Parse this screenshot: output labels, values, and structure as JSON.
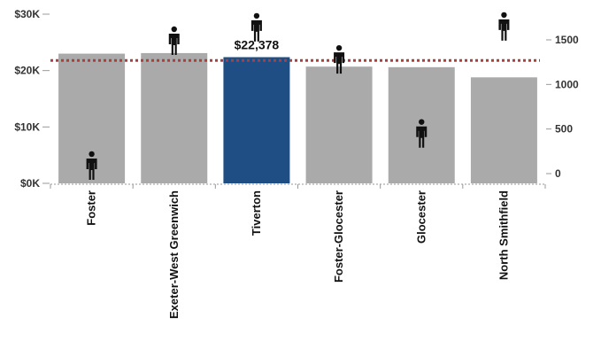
{
  "chart_data": {
    "type": "bar",
    "categories": [
      "Foster",
      "Exeter-West Greenwich",
      "Tiverton",
      "Foster-Glocester",
      "Glocester",
      "North Smithfield"
    ],
    "values": [
      23000,
      23100,
      22378,
      20700,
      20600,
      18800
    ],
    "highlight_index": 2,
    "highlight_label": "$22,378",
    "reference_line": 21800,
    "secondary_series": {
      "marker": "person-icon",
      "values": [
        90,
        1490,
        1640,
        1280,
        450,
        1650
      ]
    },
    "y_left": {
      "ticks": [
        0,
        10000,
        20000,
        30000
      ],
      "tick_labels": [
        "$0K",
        "$10K",
        "$20K",
        "$30K"
      ],
      "range": [
        0,
        30000
      ]
    },
    "y_right": {
      "ticks": [
        0,
        500,
        1000,
        1500
      ],
      "tick_labels": [
        "0",
        "500",
        "1000",
        "1500"
      ],
      "range": [
        0,
        1750
      ]
    },
    "colors": {
      "bar": "#aaaaaa",
      "highlight": "#1f4e85",
      "reference_line": "#b53a3a",
      "marker": "#111111",
      "axis": "#999999"
    }
  }
}
